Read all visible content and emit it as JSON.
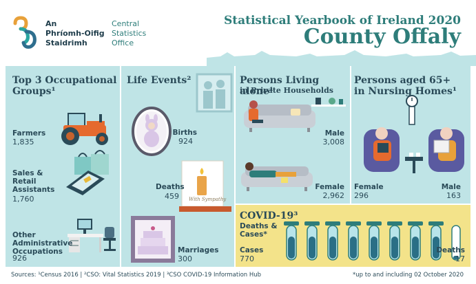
{
  "org": {
    "irish_name_line1": "An",
    "irish_name_line2": "Phríomh-Oifig",
    "irish_name_line3": "Staidrimh",
    "english_name_line1": "Central",
    "english_name_line2": "Statistics",
    "english_name_line3": "Office"
  },
  "header": {
    "title": "Statistical Yearbook of Ireland 2020",
    "subtitle": "County Offaly"
  },
  "occupations": {
    "title_line1": "Top 3 Occupational",
    "title_line2": "Groups¹",
    "items": [
      {
        "label": "Farmers",
        "value": "1,835"
      },
      {
        "label_line1": "Sales &",
        "label_line2": "Retail",
        "label_line3": "Assistants",
        "value": "1,760"
      },
      {
        "label_line1": "Other",
        "label_line2": "Administrative",
        "label_line3": "Occupations",
        "value": "926"
      }
    ]
  },
  "life_events": {
    "title": "Life Events²",
    "births_label": "Births",
    "births_value": "924",
    "deaths_label": "Deaths",
    "deaths_value": "459",
    "marriages_label": "Marriages",
    "marriages_value": "300",
    "card_text": "With Sympathy"
  },
  "living_alone": {
    "title": "Persons Living alone¹",
    "subtitle": "in Private Households",
    "male_label": "Male",
    "male_value": "3,008",
    "female_label": "Female",
    "female_value": "2,962"
  },
  "nursing": {
    "title_line1": "Persons aged 65+",
    "title_line2": "in Nursing Homes¹",
    "female_label": "Female",
    "female_value": "296",
    "male_label": "Male",
    "male_value": "163"
  },
  "covid": {
    "title": "COVID-19³",
    "subtitle_line1": "Deaths &",
    "subtitle_line2": "Cases*",
    "cases_label": "Cases",
    "cases_value": "770",
    "deaths_label": "Deaths",
    "deaths_value": "17"
  },
  "footer": {
    "sources": "Sources: ¹Census 2016  |  ²CSO: Vital Statistics 2019  |  ³CSO COVID-19 Information Hub",
    "note": "*up to and including 02 October 2020"
  },
  "colors": {
    "teal": "#2e7d7a",
    "panel": "#bfe4e6",
    "covid_bg": "#f3e38a",
    "text": "#2a4a58"
  }
}
